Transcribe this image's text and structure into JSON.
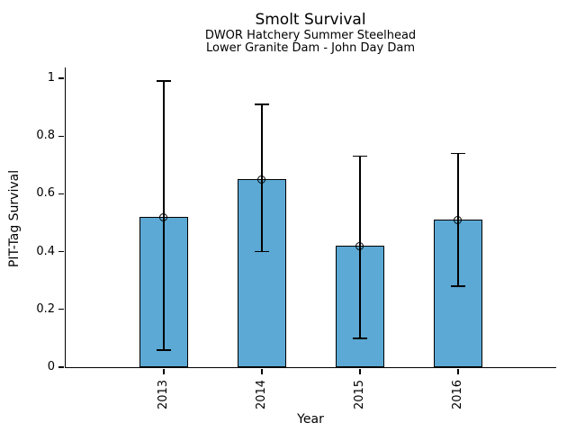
{
  "chart_data": {
    "type": "bar",
    "title": "Smolt Survival",
    "subtitle_lines": [
      "DWOR Hatchery Summer Steelhead",
      "Lower Granite Dam - John Day Dam"
    ],
    "xlabel": "Year",
    "ylabel": "PIT-Tag Survival",
    "categories": [
      "2013",
      "2014",
      "2015",
      "2016"
    ],
    "values": [
      0.52,
      0.65,
      0.42,
      0.51
    ],
    "error_bars": {
      "low": [
        0.06,
        0.4,
        0.1,
        0.28
      ],
      "high": [
        0.99,
        0.91,
        0.73,
        0.74
      ]
    },
    "yticks": {
      "values": [
        0,
        0.2,
        0.4,
        0.6,
        0.8,
        1
      ],
      "labels": [
        "0",
        "0.2",
        "0.4",
        "0.6",
        "0.8",
        "1"
      ]
    },
    "ylim": [
      0,
      1.04
    ],
    "grid": false,
    "legend": "none",
    "xtick_label_rotation": 90,
    "marker": "open-circle",
    "bar_color": "#5BA9D4",
    "bar_edge_color": "#000000",
    "error_color": "#000000",
    "text_color": "#000000",
    "background": "#FFFFFF"
  }
}
